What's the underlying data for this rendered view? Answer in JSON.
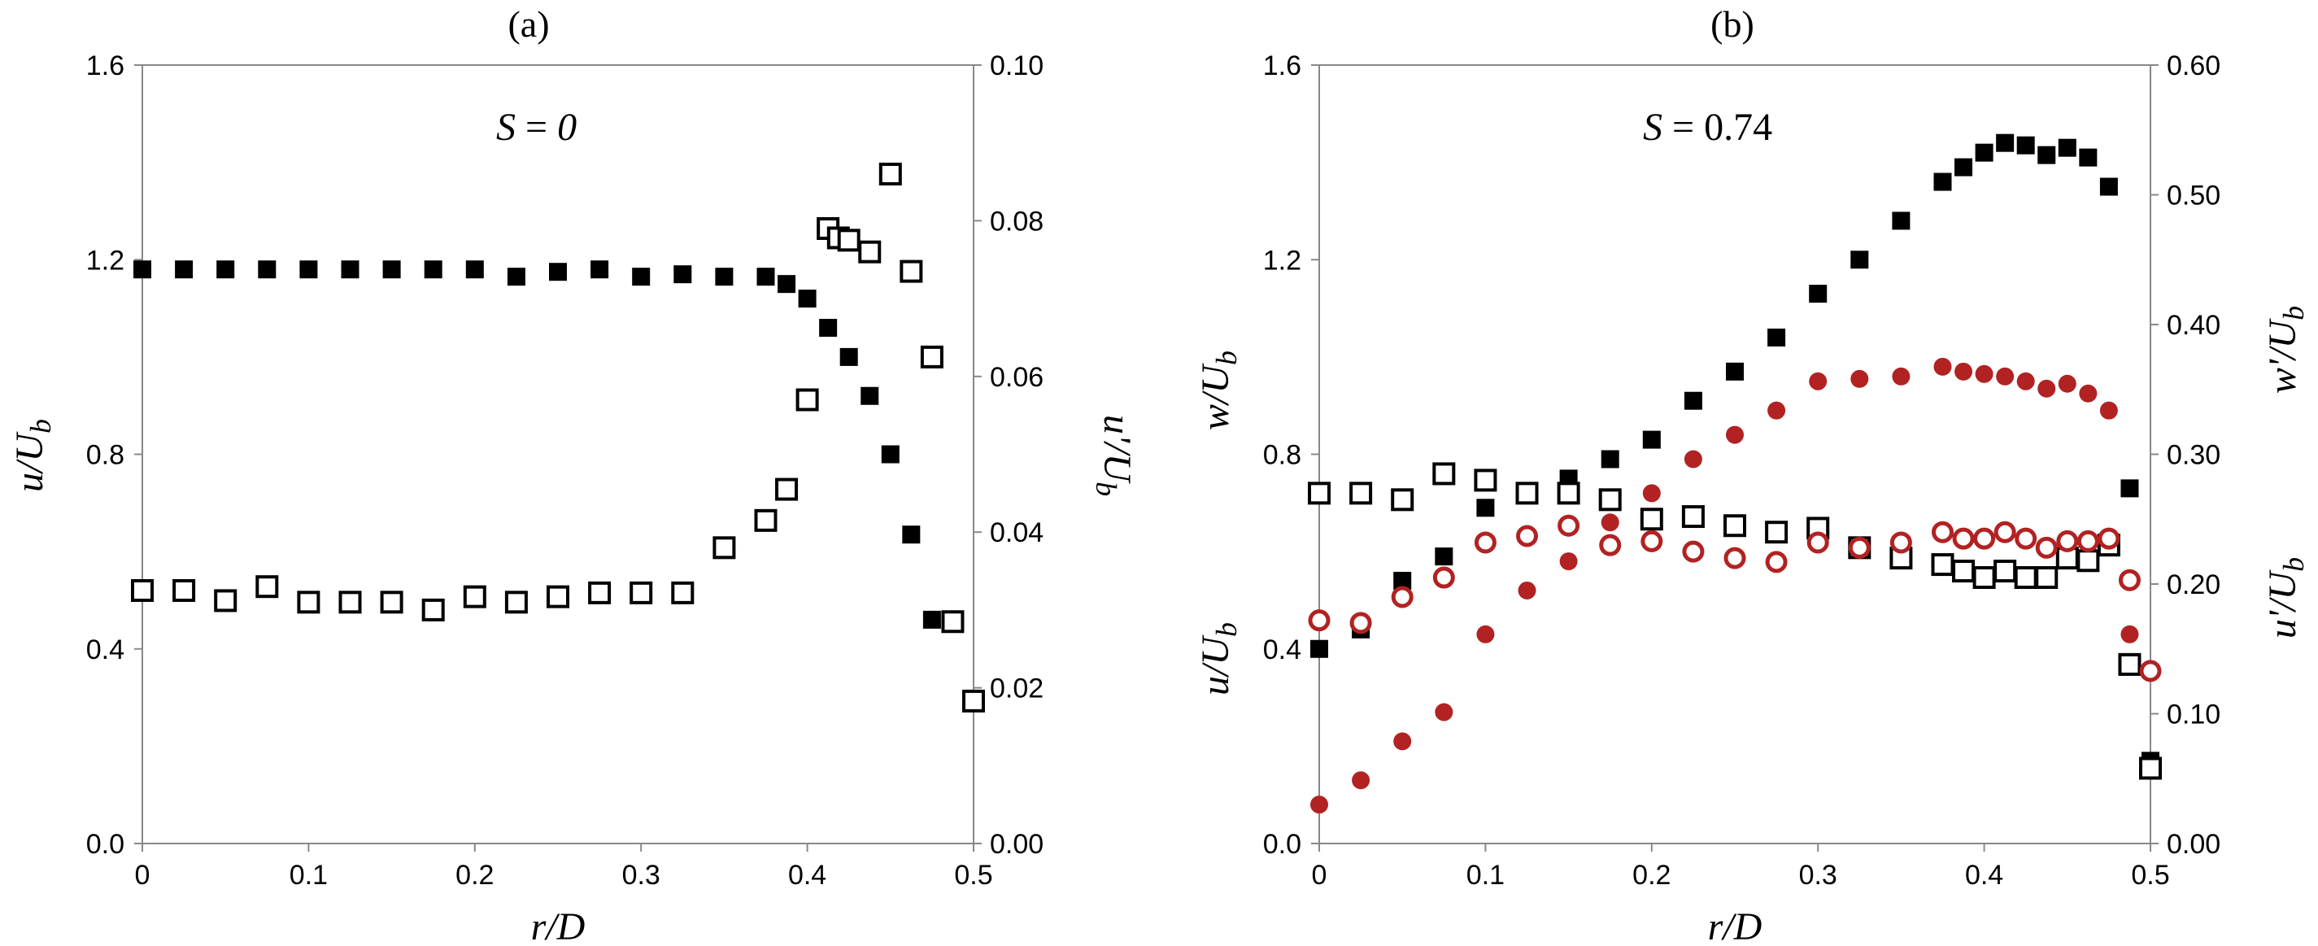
{
  "chart_data": [
    {
      "type": "scatter",
      "panel_label": "(a)",
      "annotation": {
        "var": "S",
        "eq": " = ",
        "val": "0"
      },
      "xlabel": "r/D",
      "ylabel_left": "u/U",
      "ylabel_left_sub": "b",
      "ylabel_right": "u'/U",
      "ylabel_right_sub": "b",
      "xlim": [
        0,
        0.5
      ],
      "ylim_left": [
        0,
        1.6
      ],
      "ylim_right": [
        0,
        0.1
      ],
      "x_ticks": [
        "0",
        "0.1",
        "0.2",
        "0.3",
        "0.4",
        "0.5"
      ],
      "y_left_ticks": [
        "0.0",
        "0.4",
        "0.8",
        "1.2",
        "1.6"
      ],
      "y_right_ticks": [
        "0.00",
        "0.02",
        "0.04",
        "0.06",
        "0.08",
        "0.10"
      ],
      "series": [
        {
          "name": "u/Ub",
          "axis": "left",
          "marker": "square-filled",
          "color": "#000000",
          "x": [
            0,
            0.025,
            0.05,
            0.075,
            0.1,
            0.125,
            0.15,
            0.175,
            0.2,
            0.225,
            0.25,
            0.275,
            0.3,
            0.325,
            0.35,
            0.375,
            0.3875,
            0.4,
            0.4125,
            0.425,
            0.4375,
            0.45,
            0.4625,
            0.475
          ],
          "y": [
            1.18,
            1.18,
            1.18,
            1.18,
            1.18,
            1.18,
            1.18,
            1.18,
            1.18,
            1.165,
            1.175,
            1.18,
            1.165,
            1.17,
            1.165,
            1.165,
            1.15,
            1.12,
            1.06,
            1.0,
            0.92,
            0.8,
            0.635,
            0.46
          ]
        },
        {
          "name": "u'/Ub",
          "axis": "right",
          "marker": "square-open",
          "color": "#000000",
          "x": [
            0,
            0.025,
            0.05,
            0.075,
            0.1,
            0.125,
            0.15,
            0.175,
            0.2,
            0.225,
            0.25,
            0.275,
            0.3,
            0.325,
            0.35,
            0.375,
            0.3875,
            0.4,
            0.4125,
            0.4187,
            0.425,
            0.4375,
            0.45,
            0.4625,
            0.475,
            0.4875,
            0.5
          ],
          "y": [
            0.0325,
            0.0325,
            0.0312,
            0.033,
            0.031,
            0.031,
            0.031,
            0.03,
            0.0317,
            0.031,
            0.0317,
            0.0322,
            0.0322,
            0.0322,
            0.038,
            0.0415,
            0.0455,
            0.057,
            0.079,
            0.0778,
            0.0775,
            0.076,
            0.086,
            0.0735,
            0.0625,
            0.0285,
            0.0183
          ]
        }
      ]
    },
    {
      "type": "scatter",
      "panel_label": "(b)",
      "annotation": {
        "var": "S",
        "eq": " = ",
        "val": "0.74"
      },
      "xlabel": "r/D",
      "ylabel_left_top": "w/U",
      "ylabel_left_top_sub": "b",
      "ylabel_left_bottom": "u/U",
      "ylabel_left_bottom_sub": "b",
      "ylabel_right_top": "w'/U",
      "ylabel_right_top_sub": "b",
      "ylabel_right_bottom": "u'/U",
      "ylabel_right_bottom_sub": "b",
      "xlim": [
        0,
        0.5
      ],
      "ylim_left": [
        0,
        1.6
      ],
      "ylim_right": [
        0,
        0.6
      ],
      "x_ticks": [
        "0",
        "0.1",
        "0.2",
        "0.3",
        "0.4",
        "0.5"
      ],
      "y_left_ticks": [
        "0.0",
        "0.4",
        "0.8",
        "1.2",
        "1.6"
      ],
      "y_right_ticks": [
        "0.00",
        "0.10",
        "0.20",
        "0.30",
        "0.40",
        "0.50",
        "0.60"
      ],
      "series": [
        {
          "name": "u/Ub",
          "axis": "left",
          "marker": "square-filled",
          "color": "#000000",
          "x": [
            0,
            0.025,
            0.05,
            0.075,
            0.1,
            0.125,
            0.15,
            0.175,
            0.2,
            0.225,
            0.25,
            0.275,
            0.3,
            0.325,
            0.35,
            0.375,
            0.3875,
            0.4,
            0.4125,
            0.425,
            0.4375,
            0.45,
            0.4625,
            0.475,
            0.4875,
            0.5
          ],
          "y": [
            0.4,
            0.44,
            0.54,
            0.59,
            0.69,
            0.72,
            0.75,
            0.79,
            0.83,
            0.91,
            0.97,
            1.04,
            1.13,
            1.2,
            1.28,
            1.36,
            1.39,
            1.42,
            1.44,
            1.435,
            1.415,
            1.43,
            1.41,
            1.35,
            0.73,
            0.17
          ]
        },
        {
          "name": "w/Ub",
          "axis": "left",
          "marker": "circle-filled",
          "color": "#b22222",
          "x": [
            0,
            0.025,
            0.05,
            0.075,
            0.1,
            0.125,
            0.15,
            0.175,
            0.2,
            0.225,
            0.25,
            0.275,
            0.3,
            0.325,
            0.35,
            0.375,
            0.3875,
            0.4,
            0.4125,
            0.425,
            0.4375,
            0.45,
            0.4625,
            0.475,
            0.4875,
            0.5
          ],
          "y": [
            0.08,
            0.13,
            0.21,
            0.27,
            0.43,
            0.52,
            0.58,
            0.66,
            0.72,
            0.79,
            0.84,
            0.89,
            0.95,
            0.955,
            0.96,
            0.98,
            0.97,
            0.965,
            0.96,
            0.95,
            0.935,
            0.945,
            0.925,
            0.89,
            0.43,
            0.15
          ]
        },
        {
          "name": "u'/Ub",
          "axis": "right",
          "marker": "square-open",
          "color": "#000000",
          "x": [
            0,
            0.025,
            0.05,
            0.075,
            0.1,
            0.125,
            0.15,
            0.175,
            0.2,
            0.225,
            0.25,
            0.275,
            0.3,
            0.325,
            0.35,
            0.375,
            0.3875,
            0.4,
            0.4125,
            0.425,
            0.4375,
            0.45,
            0.4625,
            0.475,
            0.4875,
            0.5
          ],
          "y": [
            0.27,
            0.27,
            0.265,
            0.285,
            0.28,
            0.27,
            0.27,
            0.265,
            0.25,
            0.252,
            0.245,
            0.24,
            0.243,
            0.228,
            0.22,
            0.215,
            0.21,
            0.205,
            0.21,
            0.205,
            0.205,
            0.22,
            0.218,
            0.23,
            0.138,
            0.058
          ]
        },
        {
          "name": "w'/Ub",
          "axis": "right",
          "marker": "circle-open",
          "color": "#b22222",
          "x": [
            0,
            0.025,
            0.05,
            0.075,
            0.1,
            0.125,
            0.15,
            0.175,
            0.2,
            0.225,
            0.25,
            0.275,
            0.3,
            0.325,
            0.35,
            0.375,
            0.3875,
            0.4,
            0.4125,
            0.425,
            0.4375,
            0.45,
            0.4625,
            0.475,
            0.4875,
            0.5
          ],
          "y": [
            0.172,
            0.17,
            0.19,
            0.205,
            0.232,
            0.237,
            0.245,
            0.23,
            0.233,
            0.225,
            0.22,
            0.217,
            0.232,
            0.228,
            0.232,
            0.24,
            0.235,
            0.235,
            0.24,
            0.235,
            0.228,
            0.233,
            0.233,
            0.235,
            0.203,
            0.133
          ]
        }
      ]
    }
  ]
}
